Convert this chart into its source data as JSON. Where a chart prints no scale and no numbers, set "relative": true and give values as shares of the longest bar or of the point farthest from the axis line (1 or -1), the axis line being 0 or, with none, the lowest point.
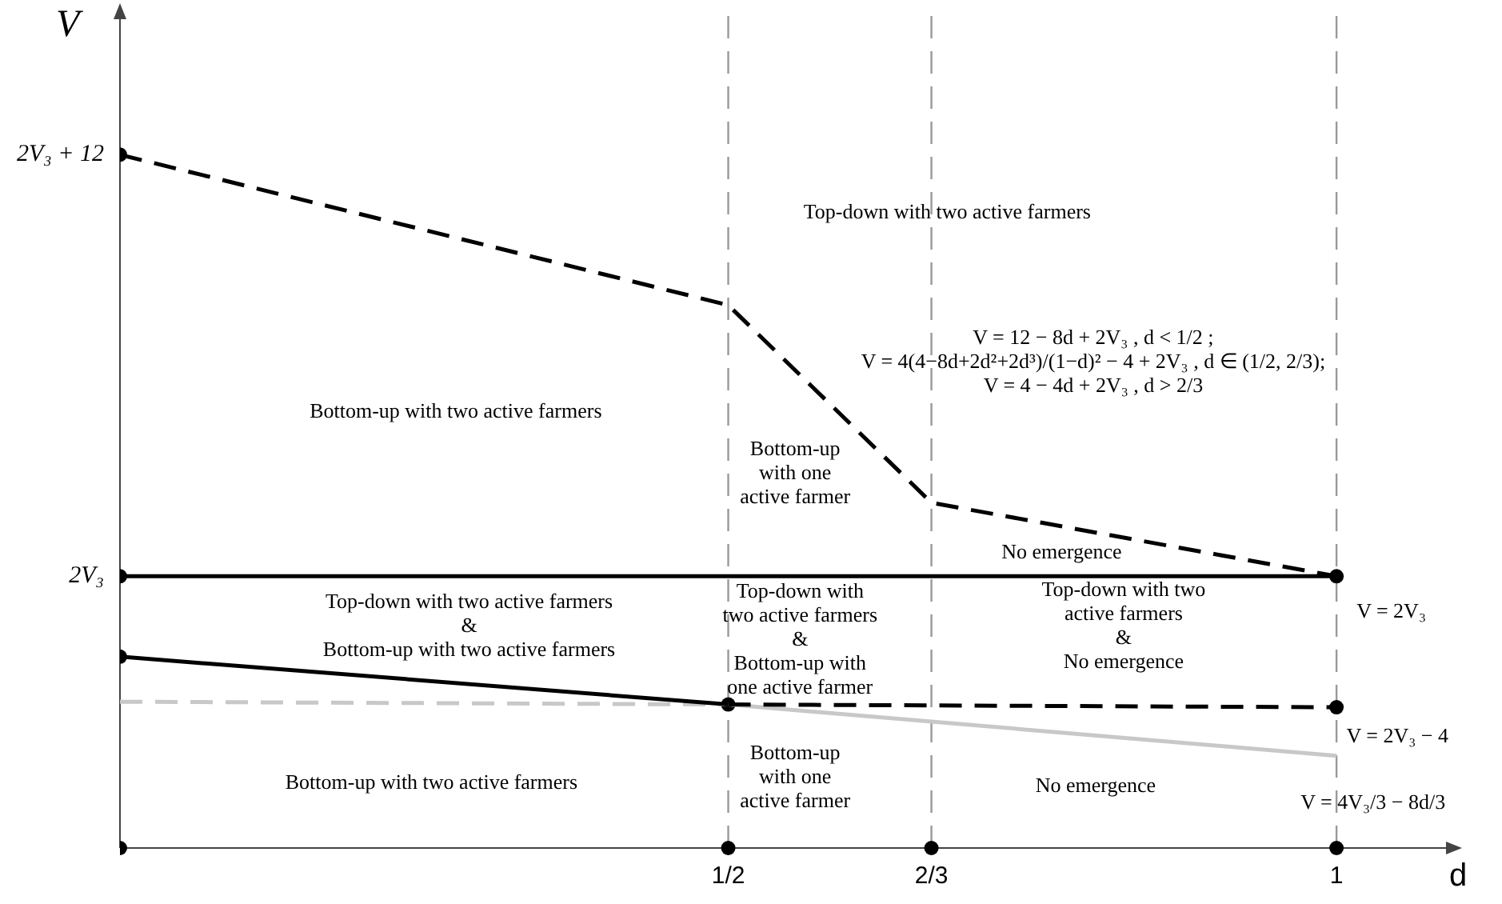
{
  "chart_data": {
    "type": "line",
    "relative": true,
    "xlabel": "d",
    "ylabel": "V",
    "xlim": [
      0,
      1.09
    ],
    "xticks": [
      {
        "value": 0.5,
        "label": "1/2"
      },
      {
        "value": 0.667,
        "label": "2/3"
      },
      {
        "value": 1,
        "label": "1"
      }
    ],
    "grid": false,
    "legend": false,
    "marker": "none",
    "series": [
      {
        "color": "#000000",
        "line_style": "dashed",
        "x": [
          0,
          0.5,
          0.667,
          1
        ],
        "values": [
          1,
          0.783,
          0.498,
          0.392
        ]
      },
      {
        "color": "#000000",
        "line_style": "solid",
        "x": [
          0,
          1
        ],
        "values": [
          0.392,
          0.392
        ]
      },
      {
        "color": "#000000",
        "line_style": "solid",
        "x": [
          0,
          0.5
        ],
        "values": [
          0.276,
          0.207
        ]
      },
      {
        "color": "#000000",
        "line_style": "dashed",
        "x": [
          0.5,
          1
        ],
        "values": [
          0.207,
          0.203
        ]
      },
      {
        "color": "#c8c8c8",
        "line_style": "dashed",
        "x": [
          0,
          0.5
        ],
        "values": [
          0.211,
          0.207
        ]
      },
      {
        "color": "#c8c8c8",
        "line_style": "solid",
        "x": [
          0.5,
          1
        ],
        "values": [
          0.207,
          0.133
        ]
      },
      {
        "type": "scatter",
        "marker": "circle",
        "color": "#000000",
        "x": [
          0,
          0,
          0,
          0,
          0.5,
          0.5,
          0.667,
          1,
          1,
          1
        ],
        "values": [
          1,
          0.392,
          0.276,
          0,
          0.207,
          0,
          0,
          0.392,
          0.203,
          0
        ]
      }
    ],
    "ref_lines": [
      {
        "axis": "x",
        "value": 0.5,
        "color": "#999999",
        "line_style": "dashed"
      },
      {
        "axis": "x",
        "value": 0.667,
        "color": "#999999",
        "line_style": "dashed"
      },
      {
        "axis": "x",
        "value": 1,
        "color": "#999999",
        "line_style": "dashed"
      }
    ],
    "annotations": [
      "2V₃ + 12",
      "2V₃",
      "Top-down with two active farmers",
      "Bottom-up with two active farmers",
      "Bottom-up\nwith one\nactive farmer",
      "No emergence",
      "Top-down with two active farmers\n&\nBottom-up with two active farmers",
      "Top-down with\ntwo active farmers\n&\nBottom-up with\none active farmer",
      "Top-down with two\nactive farmers\n&\nNo emergence",
      "Bottom-up with two active farmers",
      "Bottom-up\nwith one\nactive farmer",
      "No emergence",
      "V = 12 − 8d + 2V₃ , d < 1/2 ;\nV = 4(4−8d+2d²+2d³)/(1−d)² − 4 + 2V₃ , d ∈ (1/2, 2/3);\nV = 4 − 4d + 2V₃ , d > 2/3",
      "V = 2V₃",
      "V = 2V₃ − 4",
      "V = 4V₃/3 − 8d/3"
    ]
  }
}
